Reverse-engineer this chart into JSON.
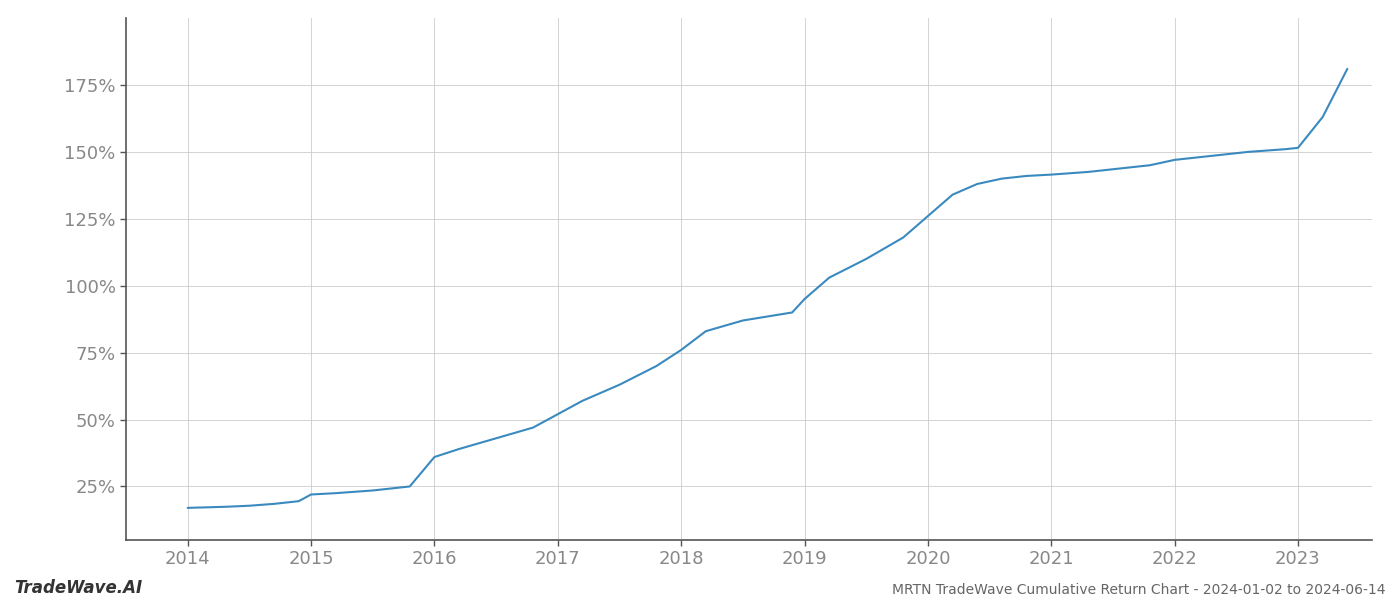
{
  "title": "MRTN TradeWave Cumulative Return Chart - 2024-01-02 to 2024-06-14",
  "watermark": "TradeWave.AI",
  "line_color": "#3a8abf",
  "background_color": "#ffffff",
  "grid_color": "#cccccc",
  "x_years": [
    2014,
    2015,
    2016,
    2017,
    2018,
    2019,
    2020,
    2021,
    2022,
    2023
  ],
  "y_ticks": [
    25,
    50,
    75,
    100,
    125,
    150,
    175
  ],
  "xlim": [
    2013.5,
    2023.6
  ],
  "ylim": [
    5,
    200
  ],
  "curve_x": [
    2014.0,
    2014.15,
    2014.3,
    2014.5,
    2014.7,
    2014.9,
    2015.0,
    2015.2,
    2015.5,
    2015.8,
    2016.0,
    2016.2,
    2016.5,
    2016.8,
    2017.0,
    2017.2,
    2017.5,
    2017.8,
    2018.0,
    2018.2,
    2018.5,
    2018.7,
    2018.9,
    2019.0,
    2019.2,
    2019.5,
    2019.8,
    2020.0,
    2020.2,
    2020.4,
    2020.6,
    2020.8,
    2021.0,
    2021.3,
    2021.5,
    2021.8,
    2022.0,
    2022.3,
    2022.6,
    2022.9,
    2023.0,
    2023.2,
    2023.4
  ],
  "curve_y": [
    17.0,
    17.2,
    17.4,
    17.8,
    18.5,
    19.5,
    22.0,
    22.5,
    23.5,
    25.0,
    36.0,
    39.0,
    43.0,
    47.0,
    52.0,
    57.0,
    63.0,
    70.0,
    76.0,
    83.0,
    87.0,
    88.5,
    90.0,
    95.0,
    103.0,
    110.0,
    118.0,
    126.0,
    134.0,
    138.0,
    140.0,
    141.0,
    141.5,
    142.5,
    143.5,
    145.0,
    147.0,
    148.5,
    150.0,
    151.0,
    151.5,
    163.0,
    181.0
  ]
}
